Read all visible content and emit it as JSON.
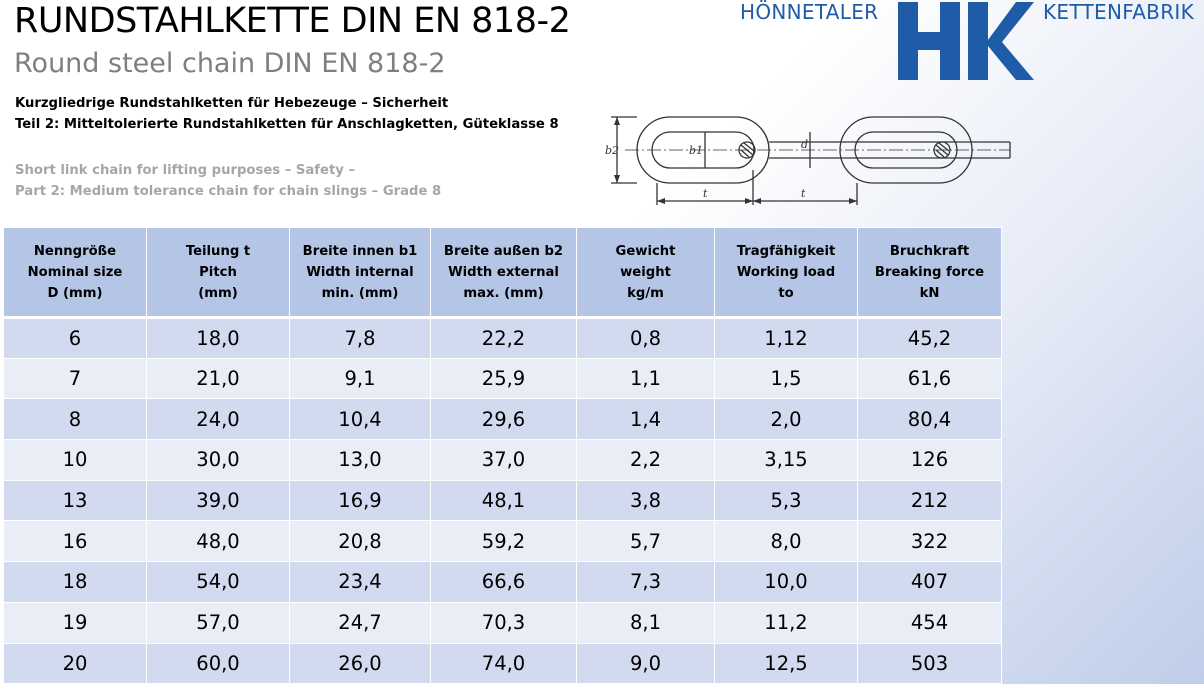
{
  "header": {
    "title": "RUNDSTAHLKETTE DIN EN 818-2",
    "subtitle": "Round steel chain DIN EN 818-2",
    "description_de": [
      "Kurzgliedrige Rundstahlketten für Hebezeuge – Sicherheit",
      "Teil 2: Mitteltolerierte Rundstahlketten für Anschlagketten, Güteklasse 8"
    ],
    "description_en": [
      "Short link chain for lifting purposes – Safety –",
      "Part 2: Medium tolerance chain for chain slings – Grade 8"
    ]
  },
  "logo": {
    "left_text": "HÖNNETALER",
    "right_text": "KETTENFABRIK",
    "mark_letters": "HK",
    "color": "#1f5ca8"
  },
  "drawing": {
    "labels": {
      "b2": "b2",
      "b1": "b1",
      "d": "d",
      "t1": "t",
      "t2": "t"
    }
  },
  "table": {
    "header_color": "#b4c5e6",
    "row_colors": [
      "#d2daef",
      "#e9edf6"
    ],
    "columns": [
      [
        "Nenngröße",
        "Nominal size",
        "D (mm)"
      ],
      [
        "Teilung t",
        "Pitch",
        "(mm)"
      ],
      [
        "Breite innen b1",
        "Width internal",
        "min. (mm)"
      ],
      [
        "Breite außen b2",
        "Width external",
        "max. (mm)"
      ],
      [
        "Gewicht",
        "weight",
        "kg/m"
      ],
      [
        "Tragfähigkeit",
        "Working load",
        "to"
      ],
      [
        "Bruchkraft",
        "Breaking force",
        "kN"
      ]
    ],
    "rows": [
      [
        "6",
        "18,0",
        "7,8",
        "22,2",
        "0,8",
        "1,12",
        "45,2"
      ],
      [
        "7",
        "21,0",
        "9,1",
        "25,9",
        "1,1",
        "1,5",
        "61,6"
      ],
      [
        "8",
        "24,0",
        "10,4",
        "29,6",
        "1,4",
        "2,0",
        "80,4"
      ],
      [
        "10",
        "30,0",
        "13,0",
        "37,0",
        "2,2",
        "3,15",
        "126"
      ],
      [
        "13",
        "39,0",
        "16,9",
        "48,1",
        "3,8",
        "5,3",
        "212"
      ],
      [
        "16",
        "48,0",
        "20,8",
        "59,2",
        "5,7",
        "8,0",
        "322"
      ],
      [
        "18",
        "54,0",
        "23,4",
        "66,6",
        "7,3",
        "10,0",
        "407"
      ],
      [
        "19",
        "57,0",
        "24,7",
        "70,3",
        "8,1",
        "11,2",
        "454"
      ],
      [
        "20",
        "60,0",
        "26,0",
        "74,0",
        "9,0",
        "12,5",
        "503"
      ]
    ]
  }
}
